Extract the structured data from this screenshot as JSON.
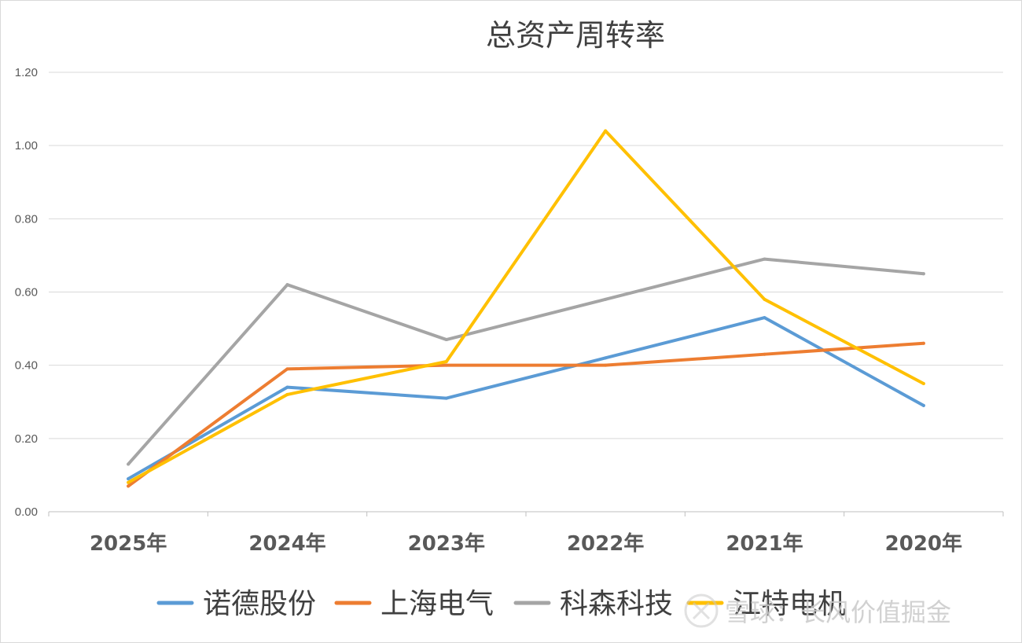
{
  "chart_data": {
    "type": "line",
    "title": "总资产周转率",
    "categories": [
      "2025年",
      "2024年",
      "2023年",
      "2022年",
      "2021年",
      "2020年"
    ],
    "ylim": [
      0,
      1.2
    ],
    "yticks": [
      "0.00",
      "0.20",
      "0.40",
      "0.60",
      "0.80",
      "1.00",
      "1.20"
    ],
    "grid": true,
    "legend_position": "bottom",
    "series": [
      {
        "name": "诺德股份",
        "color": "#5b9bd5",
        "values": [
          0.09,
          0.34,
          0.31,
          0.42,
          0.53,
          0.29
        ]
      },
      {
        "name": "上海电气",
        "color": "#ed7d31",
        "values": [
          0.07,
          0.39,
          0.4,
          0.4,
          0.43,
          0.46
        ]
      },
      {
        "name": "科森科技",
        "color": "#a5a5a5",
        "values": [
          0.13,
          0.62,
          0.47,
          0.58,
          0.69,
          0.65
        ]
      },
      {
        "name": "江特电机",
        "color": "#ffc000",
        "values": [
          0.08,
          0.32,
          0.41,
          1.04,
          0.58,
          0.35
        ]
      }
    ]
  },
  "watermark": {
    "text": "雪球：长风价值掘金",
    "icon": "snowball-logo-icon"
  }
}
